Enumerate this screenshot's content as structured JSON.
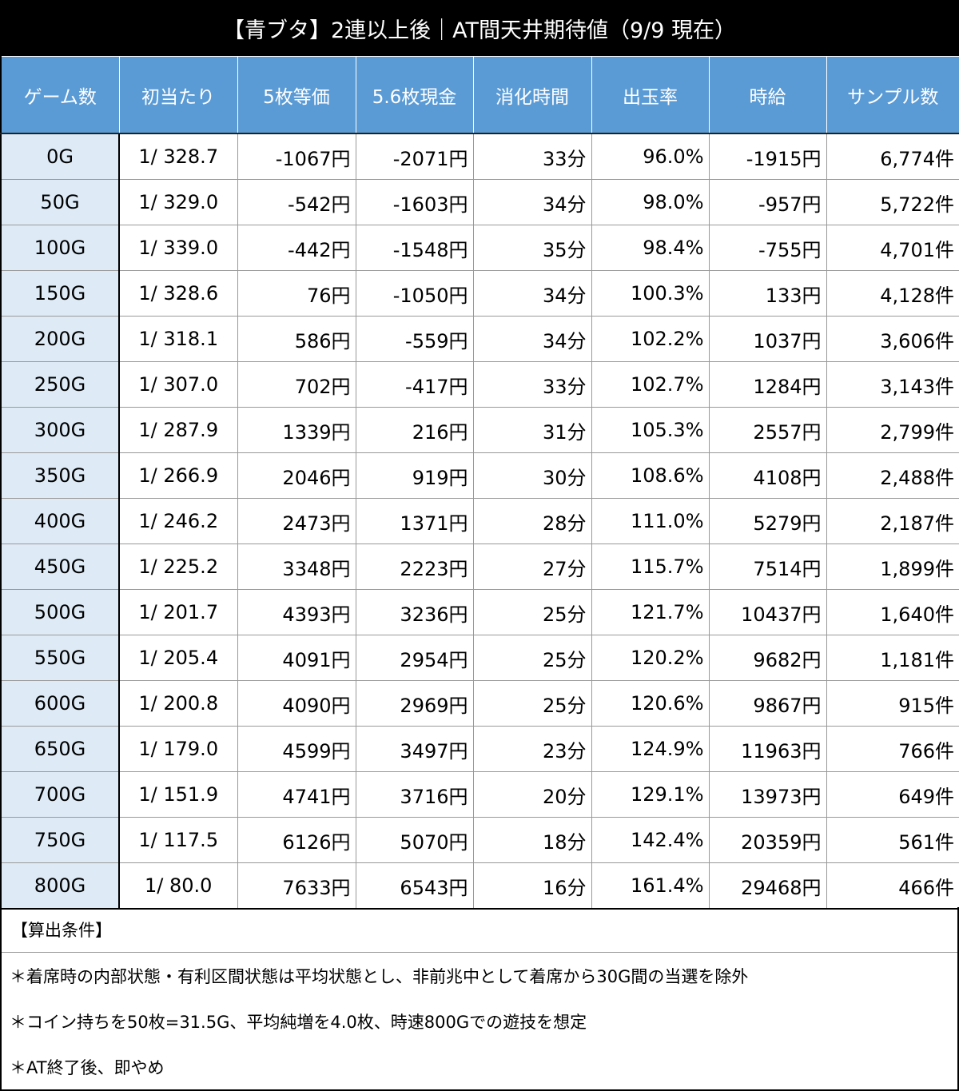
{
  "title": "【青ブタ】2連以上後｜AT間天井期待値（9/9 現在）",
  "chart_data": {
    "type": "table",
    "columns": [
      "ゲーム数",
      "初当たり",
      "5枚等価",
      "5.6枚現金",
      "消化時間",
      "出玉率",
      "時給",
      "サンプル数"
    ],
    "rows": [
      [
        "0G",
        "1/ 328.7",
        "-1067円",
        "-2071円",
        "33分",
        "96.0%",
        "-1915円",
        "6,774件"
      ],
      [
        "50G",
        "1/ 329.0",
        "-542円",
        "-1603円",
        "34分",
        "98.0%",
        "-957円",
        "5,722件"
      ],
      [
        "100G",
        "1/ 339.0",
        "-442円",
        "-1548円",
        "35分",
        "98.4%",
        "-755円",
        "4,701件"
      ],
      [
        "150G",
        "1/ 328.6",
        "76円",
        "-1050円",
        "34分",
        "100.3%",
        "133円",
        "4,128件"
      ],
      [
        "200G",
        "1/ 318.1",
        "586円",
        "-559円",
        "34分",
        "102.2%",
        "1037円",
        "3,606件"
      ],
      [
        "250G",
        "1/ 307.0",
        "702円",
        "-417円",
        "33分",
        "102.7%",
        "1284円",
        "3,143件"
      ],
      [
        "300G",
        "1/ 287.9",
        "1339円",
        "216円",
        "31分",
        "105.3%",
        "2557円",
        "2,799件"
      ],
      [
        "350G",
        "1/ 266.9",
        "2046円",
        "919円",
        "30分",
        "108.6%",
        "4108円",
        "2,488件"
      ],
      [
        "400G",
        "1/ 246.2",
        "2473円",
        "1371円",
        "28分",
        "111.0%",
        "5279円",
        "2,187件"
      ],
      [
        "450G",
        "1/ 225.2",
        "3348円",
        "2223円",
        "27分",
        "115.7%",
        "7514円",
        "1,899件"
      ],
      [
        "500G",
        "1/ 201.7",
        "4393円",
        "3236円",
        "25分",
        "121.7%",
        "10437円",
        "1,640件"
      ],
      [
        "550G",
        "1/ 205.4",
        "4091円",
        "2954円",
        "25分",
        "120.2%",
        "9682円",
        "1,181件"
      ],
      [
        "600G",
        "1/ 200.8",
        "4090円",
        "2969円",
        "25分",
        "120.6%",
        "9867円",
        "915件"
      ],
      [
        "650G",
        "1/ 179.0",
        "4599円",
        "3497円",
        "23分",
        "124.9%",
        "11963円",
        "766件"
      ],
      [
        "700G",
        "1/ 151.9",
        "4741円",
        "3716円",
        "20分",
        "129.1%",
        "13973円",
        "649件"
      ],
      [
        "750G",
        "1/ 117.5",
        "6126円",
        "5070円",
        "18分",
        "142.4%",
        "20359円",
        "561件"
      ],
      [
        "800G",
        "1/ 80.0",
        "7633円",
        "6543円",
        "16分",
        "161.4%",
        "29468円",
        "466件"
      ]
    ]
  },
  "colors": {
    "header_bg": "#5b9bd5",
    "first_col_bg": "#deebf7",
    "negative": "#e8141a",
    "positive": "#1414d2"
  },
  "notes": {
    "heading": "【算出条件】",
    "lines": [
      "＊着席時の内部状態・有利区間状態は平均状態とし、非前兆中として着席から30G間の当選を除外",
      "＊コイン持ちを50枚=31.5G、平均純増を4.0枚、時速800Gでの遊技を想定",
      "＊AT終了後、即やめ"
    ]
  }
}
